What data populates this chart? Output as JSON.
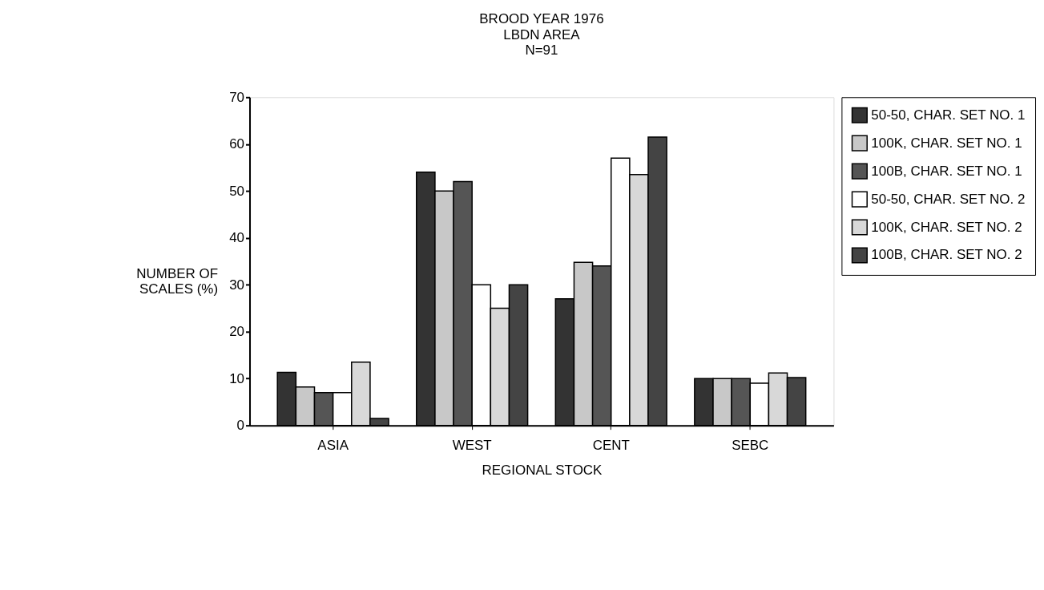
{
  "chart_data": {
    "type": "bar",
    "title": "BROOD YEAR 1976",
    "subtitle": "LBDN AREA\nN=91",
    "xlabel": "REGIONAL STOCK",
    "ylabel": "NUMBER OF\nSCALES (%)",
    "categories": [
      "ASIA",
      "WEST",
      "CENT",
      "SEBC"
    ],
    "series": [
      {
        "name": "50-50, CHAR. SET NO. 1",
        "color": "#333333",
        "values": [
          11.3,
          54,
          27,
          10
        ]
      },
      {
        "name": "100K, CHAR. SET NO. 1",
        "color": "#c8c8c8",
        "values": [
          8.2,
          50,
          34.8,
          10
        ]
      },
      {
        "name": "100B, CHAR. SET NO. 1",
        "color": "#555555",
        "values": [
          7,
          52,
          34,
          10
        ]
      },
      {
        "name": "50-50, CHAR. SET NO. 2",
        "color": "#ffffff",
        "values": [
          7,
          30,
          57,
          9
        ]
      },
      {
        "name": "100K, CHAR. SET NO. 2",
        "color": "#d8d8d8",
        "values": [
          13.5,
          25,
          53.5,
          11.2
        ]
      },
      {
        "name": "100B, CHAR. SET NO. 2",
        "color": "#444444",
        "values": [
          1.5,
          30,
          61.5,
          10.2
        ]
      }
    ],
    "ylim": [
      0,
      70
    ],
    "yticks": [
      0,
      10,
      20,
      30,
      40,
      50,
      60,
      70
    ],
    "grid": false,
    "legend": "top right"
  }
}
